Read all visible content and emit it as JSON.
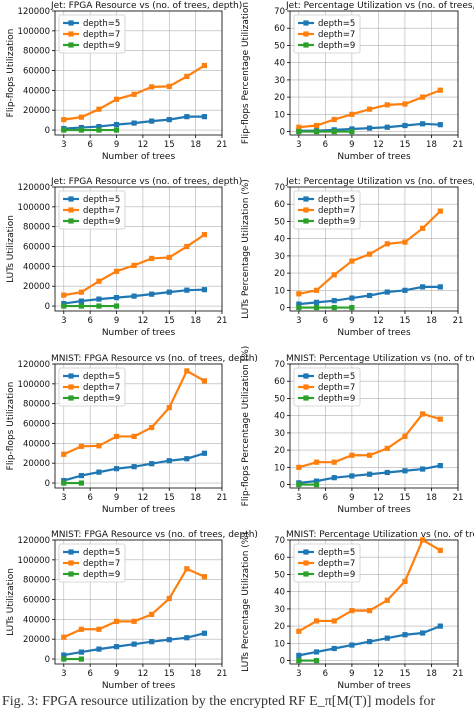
{
  "colors": {
    "depth5": "#1f77b4",
    "depth7": "#ff7f0e",
    "depth9": "#2ca02c"
  },
  "caption": "Fig. 3: FPGA resource utilization by the encrypted RF E_π[M(T)] models for",
  "chart_data": [
    {
      "type": "line",
      "title": "Jet: FPGA Resource vs (no. of trees, depth)",
      "xlabel": "Number of trees",
      "ylabel": "Flip-flops Utilization",
      "xlim": [
        2,
        21
      ],
      "ylim": [
        -5000,
        120000
      ],
      "xticks": [
        3,
        6,
        9,
        12,
        15,
        18,
        21
      ],
      "yticks": [
        0,
        20000,
        40000,
        60000,
        80000,
        100000,
        120000
      ],
      "grid": true,
      "legend": "upper left",
      "series": [
        {
          "name": "depth=5",
          "x": [
            3,
            5,
            7,
            9,
            11,
            13,
            15,
            17,
            19
          ],
          "values": [
            1500,
            2500,
            3500,
            5500,
            7000,
            9000,
            10500,
            13500,
            13500
          ]
        },
        {
          "name": "depth=7",
          "x": [
            3,
            5,
            7,
            9,
            11,
            13,
            15,
            17,
            19
          ],
          "values": [
            10500,
            13000,
            21000,
            31000,
            36000,
            43500,
            44000,
            54000,
            65000
          ]
        },
        {
          "name": "depth=9",
          "x": [
            3,
            5,
            7,
            9
          ],
          "values": [
            0,
            0,
            0,
            0
          ]
        }
      ]
    },
    {
      "type": "line",
      "title": "Jet: Percentage Utilization vs (no. of trees, depth)",
      "xlabel": "Number of trees",
      "ylabel": "Flip-flops Percentage Utilization",
      "xlim": [
        2,
        21
      ],
      "ylim": [
        -2,
        70
      ],
      "xticks": [
        3,
        6,
        9,
        12,
        15,
        18,
        21
      ],
      "yticks": [
        0,
        10,
        20,
        30,
        40,
        50,
        60,
        70
      ],
      "grid": true,
      "legend": "upper left",
      "series": [
        {
          "name": "depth=5",
          "x": [
            3,
            5,
            7,
            9,
            11,
            13,
            15,
            17,
            19
          ],
          "values": [
            0.5,
            0.5,
            1,
            1.5,
            2,
            2.5,
            3.5,
            4.5,
            4
          ]
        },
        {
          "name": "depth=7",
          "x": [
            3,
            5,
            7,
            9,
            11,
            13,
            15,
            17,
            19
          ],
          "values": [
            2.5,
            3.5,
            7,
            10,
            13,
            15.5,
            16,
            20,
            24
          ]
        },
        {
          "name": "depth=9",
          "x": [
            3,
            5,
            7,
            9
          ],
          "values": [
            0,
            0,
            0,
            0
          ]
        }
      ]
    },
    {
      "type": "line",
      "title": "Jet: FPGA Resource vs (no. of trees, depth)",
      "xlabel": "Number of trees",
      "ylabel": "LUTs Utilization",
      "xlim": [
        2,
        21
      ],
      "ylim": [
        -5000,
        120000
      ],
      "xticks": [
        3,
        6,
        9,
        12,
        15,
        18,
        21
      ],
      "yticks": [
        0,
        20000,
        40000,
        60000,
        80000,
        100000,
        120000
      ],
      "grid": true,
      "legend": "upper left",
      "series": [
        {
          "name": "depth=5",
          "x": [
            3,
            5,
            7,
            9,
            11,
            13,
            15,
            17,
            19
          ],
          "values": [
            2500,
            5000,
            7000,
            8500,
            10000,
            12000,
            14000,
            16000,
            16500
          ]
        },
        {
          "name": "depth=7",
          "x": [
            3,
            5,
            7,
            9,
            11,
            13,
            15,
            17,
            19
          ],
          "values": [
            11000,
            14000,
            25000,
            35000,
            41000,
            48000,
            49000,
            60000,
            72000
          ]
        },
        {
          "name": "depth=9",
          "x": [
            3,
            5,
            7,
            9
          ],
          "values": [
            0,
            0,
            0,
            0
          ]
        }
      ]
    },
    {
      "type": "line",
      "title": "Jet: Percentage Utilization vs (no. of trees, depth)",
      "xlabel": "Number of trees",
      "ylabel": "LUTs Percentage Utilization (%)",
      "xlim": [
        2,
        21
      ],
      "ylim": [
        -2,
        70
      ],
      "xticks": [
        3,
        6,
        9,
        12,
        15,
        18,
        21
      ],
      "yticks": [
        0,
        10,
        20,
        30,
        40,
        50,
        60,
        70
      ],
      "grid": true,
      "legend": "upper left",
      "series": [
        {
          "name": "depth=5",
          "x": [
            3,
            5,
            7,
            9,
            11,
            13,
            15,
            17,
            19
          ],
          "values": [
            2,
            3,
            4,
            5.5,
            7,
            9,
            10,
            12,
            12
          ]
        },
        {
          "name": "depth=7",
          "x": [
            3,
            5,
            7,
            9,
            11,
            13,
            15,
            17,
            19
          ],
          "values": [
            8,
            10,
            19,
            27,
            31,
            37,
            38,
            46,
            56
          ]
        },
        {
          "name": "depth=9",
          "x": [
            3,
            5,
            7,
            9
          ],
          "values": [
            0,
            0,
            0,
            0
          ]
        }
      ]
    },
    {
      "type": "line",
      "title": "MNIST: FPGA Resource vs (no. of trees, depth)",
      "xlabel": "Number of trees",
      "ylabel": "Flip-flops Utilization",
      "xlim": [
        2,
        21
      ],
      "ylim": [
        -5000,
        120000
      ],
      "xticks": [
        3,
        6,
        9,
        12,
        15,
        18,
        21
      ],
      "yticks": [
        0,
        20000,
        40000,
        60000,
        80000,
        100000,
        120000
      ],
      "grid": true,
      "legend": "upper left",
      "series": [
        {
          "name": "depth=5",
          "x": [
            3,
            5,
            7,
            9,
            11,
            13,
            15,
            17,
            19
          ],
          "values": [
            2500,
            7500,
            11000,
            14500,
            16500,
            19500,
            22500,
            24500,
            30000
          ]
        },
        {
          "name": "depth=7",
          "x": [
            3,
            5,
            7,
            9,
            11,
            13,
            15,
            17,
            19
          ],
          "values": [
            29000,
            37000,
            37500,
            47000,
            47000,
            56000,
            76000,
            113000,
            103000
          ]
        },
        {
          "name": "depth=9",
          "x": [
            3,
            5
          ],
          "values": [
            0,
            0
          ]
        }
      ]
    },
    {
      "type": "line",
      "title": "MNIST: Percentage Utilization vs (no. of trees, depth)",
      "xlabel": "Number of trees",
      "ylabel": "Flip-flops Percentage Utilization (%)",
      "xlim": [
        2,
        21
      ],
      "ylim": [
        -2,
        70
      ],
      "xticks": [
        3,
        6,
        9,
        12,
        15,
        18,
        21
      ],
      "yticks": [
        0,
        10,
        20,
        30,
        40,
        50,
        60,
        70
      ],
      "grid": true,
      "legend": "upper left",
      "series": [
        {
          "name": "depth=5",
          "x": [
            3,
            5,
            7,
            9,
            11,
            13,
            15,
            17,
            19
          ],
          "values": [
            1,
            2,
            4,
            5,
            6,
            7,
            8,
            9,
            11
          ]
        },
        {
          "name": "depth=7",
          "x": [
            3,
            5,
            7,
            9,
            11,
            13,
            15,
            17,
            19
          ],
          "values": [
            10,
            13,
            13,
            17,
            17,
            21,
            28,
            41,
            38
          ]
        },
        {
          "name": "depth=9",
          "x": [
            3,
            5
          ],
          "values": [
            0,
            0
          ]
        }
      ]
    },
    {
      "type": "line",
      "title": "MNIST: FPGA Resource vs (no. of trees, depth)",
      "xlabel": "Number of trees",
      "ylabel": "LUTs Utilization",
      "xlim": [
        2,
        21
      ],
      "ylim": [
        -5000,
        120000
      ],
      "xticks": [
        3,
        6,
        9,
        12,
        15,
        18,
        21
      ],
      "yticks": [
        0,
        20000,
        40000,
        60000,
        80000,
        100000,
        120000
      ],
      "grid": true,
      "legend": "upper left",
      "series": [
        {
          "name": "depth=5",
          "x": [
            3,
            5,
            7,
            9,
            11,
            13,
            15,
            17,
            19
          ],
          "values": [
            4000,
            7000,
            10000,
            12500,
            15000,
            17500,
            19500,
            21500,
            26000
          ]
        },
        {
          "name": "depth=7",
          "x": [
            3,
            5,
            7,
            9,
            11,
            13,
            15,
            17,
            19
          ],
          "values": [
            22000,
            30000,
            30000,
            38000,
            38000,
            45000,
            61000,
            91000,
            83000
          ]
        },
        {
          "name": "depth=9",
          "x": [
            3,
            5
          ],
          "values": [
            0,
            0
          ]
        }
      ]
    },
    {
      "type": "line",
      "title": "MNIST: Percentage Utilization vs (no. of trees, depth)",
      "xlabel": "Number of trees",
      "ylabel": "LUTs Percentage Utilization (%)",
      "xlim": [
        2,
        21
      ],
      "ylim": [
        -2,
        70
      ],
      "xticks": [
        3,
        6,
        9,
        12,
        15,
        18,
        21
      ],
      "yticks": [
        0,
        10,
        20,
        30,
        40,
        50,
        60,
        70
      ],
      "grid": true,
      "legend": "upper left",
      "series": [
        {
          "name": "depth=5",
          "x": [
            3,
            5,
            7,
            9,
            11,
            13,
            15,
            17,
            19
          ],
          "values": [
            3,
            5,
            7,
            9,
            11,
            13,
            15,
            16,
            20
          ]
        },
        {
          "name": "depth=7",
          "x": [
            3,
            5,
            7,
            9,
            11,
            13,
            15,
            17,
            19
          ],
          "values": [
            17,
            23,
            23,
            29,
            29,
            35,
            46,
            70,
            64
          ]
        },
        {
          "name": "depth=9",
          "x": [
            3,
            5
          ],
          "values": [
            0,
            0
          ]
        }
      ]
    }
  ]
}
